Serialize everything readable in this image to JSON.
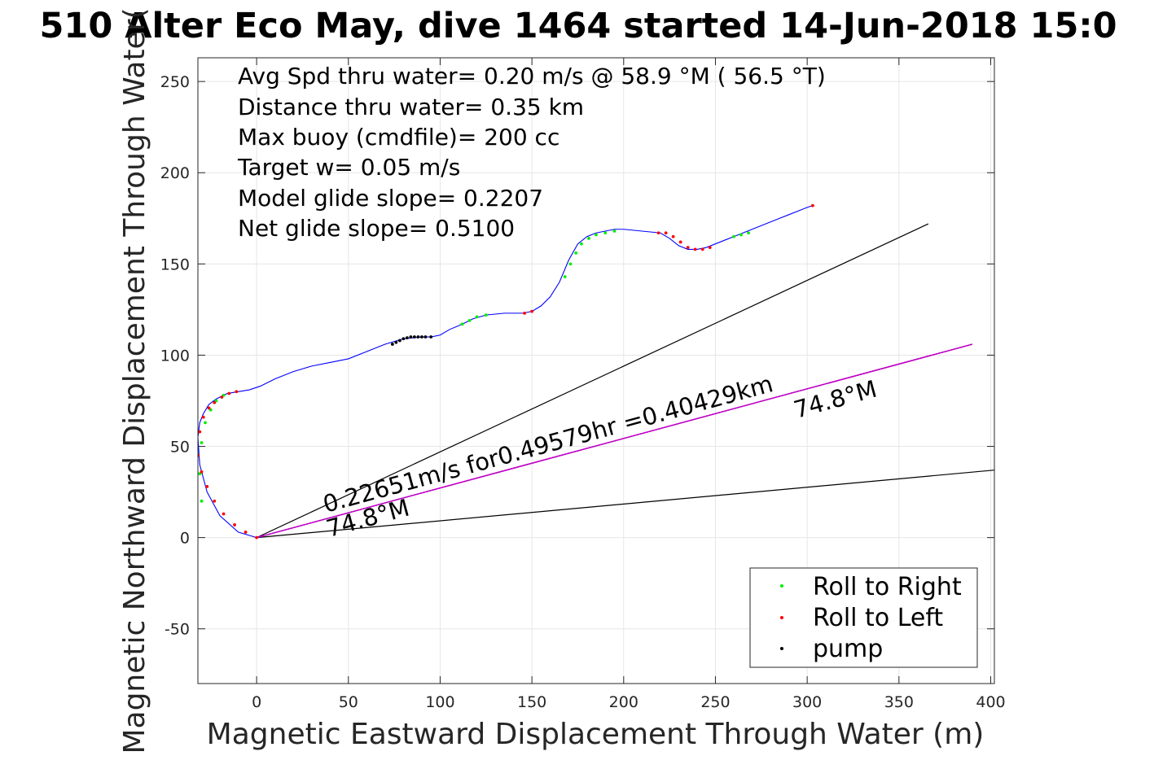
{
  "chart_data": {
    "type": "line",
    "title": "510 Alter Eco May, dive 1464 started 14-Jun-2018 15:0",
    "xlabel": "Magnetic Eastward Displacement Through Water (m)",
    "ylabel": "Magnetic Northward Displacement Through Water(",
    "xlim": [
      -32,
      402
    ],
    "ylim": [
      -80,
      263
    ],
    "xticks": [
      "0",
      "50",
      "100",
      "150",
      "200",
      "250",
      "300",
      "350",
      "400"
    ],
    "xtick_values": [
      0,
      50,
      100,
      150,
      200,
      250,
      300,
      350,
      400
    ],
    "yticks": [
      "-50",
      "0",
      "50",
      "100",
      "150",
      "200",
      "250"
    ],
    "ytick_values": [
      -50,
      0,
      50,
      100,
      150,
      200,
      250
    ],
    "grid": true,
    "legend_position": "bottom-right",
    "colors": {
      "track": "#0000ff",
      "roll_right": "#00ee00",
      "roll_left": "#ff0000",
      "pump": "#000000",
      "current": "#cc00cc",
      "slope_lines": "#000000"
    },
    "info_lines": [
      "Avg Spd thru water=  0.20 m/s @  58.9 °M ( 56.5 °T)",
      "Distance thru water=  0.35 km",
      "Max buoy (cmdfile)= 200 cc",
      "Target w= 0.05 m/s",
      "Model glide slope= 0.2207",
      "Net glide slope= 0.5100"
    ],
    "annotations": {
      "current_label": "0.22651m/s for0.49579hr =0.40429km",
      "heading_start": "74.8°M",
      "heading_end": "74.8°M"
    },
    "series": [
      {
        "name": "track",
        "kind": "line",
        "x": [
          0,
          -10,
          -20,
          -27,
          -31,
          -32,
          -31,
          -29,
          -26,
          -22,
          -16,
          -10,
          -4,
          2,
          10,
          20,
          30,
          40,
          50,
          60,
          70,
          80,
          90,
          95,
          100,
          105,
          112,
          118,
          125,
          135,
          145,
          150,
          155,
          160,
          165,
          170,
          175,
          180,
          185,
          190,
          195,
          200,
          210,
          220,
          225,
          230,
          235,
          240,
          245,
          250,
          255,
          260,
          265,
          270,
          275,
          280,
          285,
          290,
          295,
          300,
          303
        ],
        "y": [
          0,
          3,
          12,
          25,
          40,
          55,
          63,
          68,
          73,
          76,
          79,
          80,
          81,
          83,
          87,
          91,
          94,
          96,
          98,
          102,
          106,
          109,
          110,
          110,
          111,
          114,
          117,
          120,
          122,
          123,
          123,
          124,
          127,
          132,
          140,
          152,
          161,
          165,
          167,
          168,
          169,
          169,
          168,
          167,
          164,
          160,
          158,
          158,
          159,
          161,
          163,
          165,
          167,
          169,
          171,
          173,
          175,
          177,
          179,
          181,
          182
        ]
      },
      {
        "name": "Roll to Right",
        "kind": "points",
        "x": [
          -30,
          -31,
          -30,
          -28,
          -25,
          -22,
          -18,
          112,
          116,
          120,
          125,
          168,
          171,
          174,
          177,
          181,
          185,
          190,
          195,
          260,
          264,
          268
        ],
        "y": [
          20,
          35,
          52,
          63,
          70,
          75,
          78,
          117,
          119,
          121,
          122,
          143,
          150,
          156,
          161,
          164,
          166,
          167,
          168,
          165,
          166,
          167
        ]
      },
      {
        "name": "Roll to Left",
        "kind": "points",
        "x": [
          0,
          -6,
          -12,
          -18,
          -23,
          -27,
          -30,
          -32,
          -31,
          -29,
          -26,
          -23,
          -19,
          -15,
          -11,
          146,
          150,
          219,
          223,
          227,
          231,
          235,
          239,
          243,
          247,
          303
        ],
        "y": [
          0,
          3,
          7,
          13,
          20,
          28,
          36,
          45,
          58,
          66,
          71,
          74,
          77,
          79,
          80,
          123,
          124,
          167,
          167,
          165,
          162,
          159,
          158,
          158,
          159,
          182
        ]
      },
      {
        "name": "pump",
        "kind": "points",
        "x": [
          74,
          76,
          78,
          80,
          82,
          84,
          86,
          88,
          90,
          92,
          95
        ],
        "y": [
          106,
          107,
          108,
          109,
          109.5,
          110,
          110,
          110,
          110,
          110,
          110
        ]
      }
    ],
    "reference_lines": [
      {
        "name": "model glide slope line",
        "x": [
          0,
          366
        ],
        "y": [
          0,
          172
        ]
      },
      {
        "name": "net glide slope line",
        "x": [
          0,
          402
        ],
        "y": [
          0,
          37
        ]
      },
      {
        "name": "depth-averaged current",
        "x": [
          0,
          390
        ],
        "y": [
          0,
          106
        ]
      }
    ]
  },
  "legend_items": [
    {
      "label": "Roll to Right",
      "color": "#00ee00"
    },
    {
      "label": "Roll to Left",
      "color": "#ff0000"
    },
    {
      "label": "pump",
      "color": "#000000"
    }
  ]
}
